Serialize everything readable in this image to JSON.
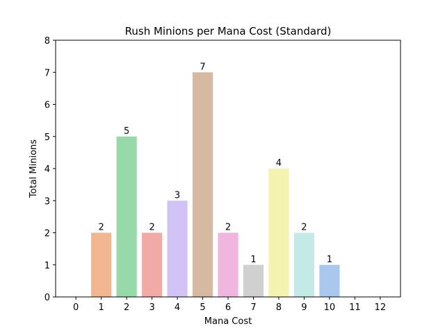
{
  "chart_data": {
    "type": "bar",
    "title": "Rush Minions per Mana Cost (Standard)",
    "xlabel": "Mana Cost",
    "ylabel": "Total Minions",
    "categories": [
      "0",
      "1",
      "2",
      "3",
      "4",
      "5",
      "6",
      "7",
      "8",
      "9",
      "10",
      "11",
      "12"
    ],
    "values": [
      0,
      2,
      5,
      2,
      3,
      7,
      2,
      1,
      4,
      2,
      1,
      0,
      0
    ],
    "data_labels": [
      "",
      "2",
      "5",
      "2",
      "3",
      "7",
      "2",
      "1",
      "4",
      "2",
      "1",
      "",
      ""
    ],
    "colors": [
      "#f2b690",
      "#f2b690",
      "#97d9a8",
      "#f2aaa6",
      "#d1c3f5",
      "#d6b9a0",
      "#f0b6e0",
      "#d0d0d0",
      "#f5f3b0",
      "#c4eae8",
      "#aac8ee",
      "#cccccc",
      "#cccccc"
    ],
    "ylim": [
      0,
      8
    ],
    "yticks": [
      "0",
      "1",
      "2",
      "3",
      "4",
      "5",
      "6",
      "7",
      "8"
    ],
    "grid": false,
    "legend": "none"
  }
}
